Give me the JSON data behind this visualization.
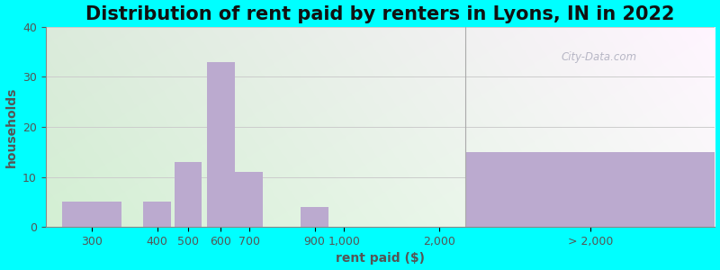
{
  "title": "Distribution of rent paid by renters in Lyons, IN in 2022",
  "xlabel": "rent paid ($)",
  "ylabel": "households",
  "bar_color": "#bbaacf",
  "background_outer": "#00ffff",
  "ylim": [
    0,
    40
  ],
  "yticks": [
    0,
    10,
    20,
    30,
    40
  ],
  "categories": [
    "300",
    "400",
    "500",
    "600",
    "700",
    "900",
    "1,000",
    "2,000",
    "> 2,000"
  ],
  "values": [
    5,
    5,
    13,
    33,
    11,
    4,
    0,
    0,
    15
  ],
  "title_fontsize": 15,
  "label_fontsize": 10,
  "tick_fontsize": 9,
  "grid_color": "#dddddd",
  "watermark": "City-Data.com"
}
